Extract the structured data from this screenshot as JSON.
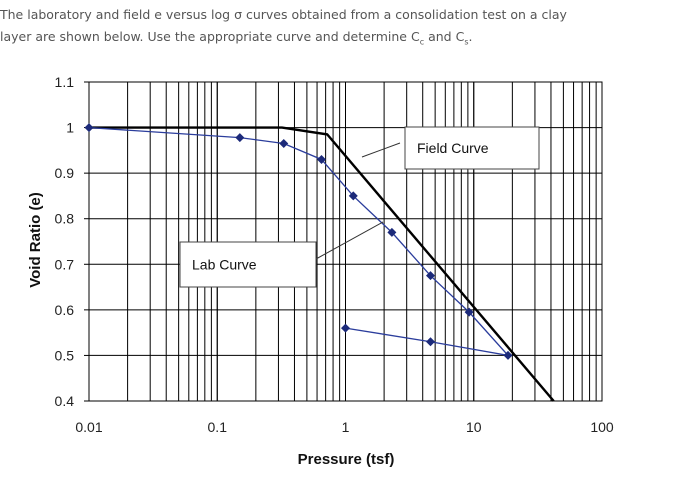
{
  "question": {
    "line1": "The laboratory and field e versus log σ curves obtained from a consolidation test on a clay",
    "line2_prefix": "layer are shown below.  Use the appropriate curve and determine C",
    "sub_c": "c",
    "and": " and C",
    "sub_s": "s",
    "period": "."
  },
  "chart_data": {
    "type": "line",
    "xscale": "log",
    "xlim": [
      0.01,
      100
    ],
    "ylim": [
      0.4,
      1.1
    ],
    "grid": true,
    "xlabel": "Pressure (tsf)",
    "ylabel": "Void Ratio (e)",
    "xticks": [
      "0.01",
      "0.1",
      "1",
      "10",
      "100"
    ],
    "yticks": [
      "0.4",
      "0.5",
      "0.6",
      "0.7",
      "0.8",
      "0.9",
      "1",
      "1.1"
    ],
    "series": [
      {
        "name": "Lab Curve",
        "color": "#2b3d9c",
        "marker": "diamond",
        "x": [
          0.01,
          0.15,
          0.33,
          0.65,
          1.15,
          2.3,
          4.6,
          9.2,
          18.5,
          4.6,
          1.0
        ],
        "y": [
          1.0,
          0.978,
          0.965,
          0.93,
          0.85,
          0.77,
          0.675,
          0.595,
          0.5,
          0.53,
          0.56
        ]
      },
      {
        "name": "Field Curve",
        "color": "#000000",
        "marker": "none",
        "x": [
          0.01,
          0.32,
          0.72,
          42
        ],
        "y": [
          1.0,
          1.0,
          0.985,
          0.4
        ]
      }
    ],
    "annotations": [
      {
        "text": "Lab Curve",
        "target_series": "Lab Curve"
      },
      {
        "text": "Field Curve",
        "target_series": "Field Curve"
      }
    ]
  }
}
